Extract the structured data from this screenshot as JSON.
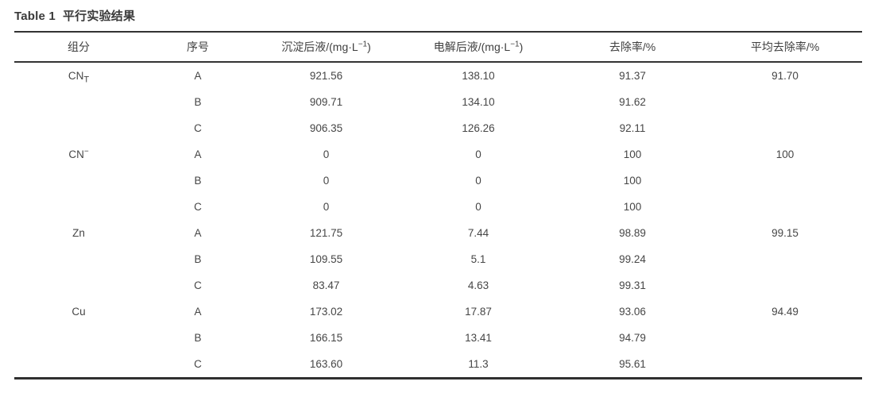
{
  "title": {
    "en": "Table 1",
    "zh": "平行实验结果"
  },
  "table": {
    "columns": [
      {
        "name": "component",
        "pre": "组分",
        "sup": "",
        "post": ""
      },
      {
        "name": "serial",
        "pre": "序号",
        "sup": "",
        "post": ""
      },
      {
        "name": "precipitation",
        "pre": "沉淀后液/(mg·L",
        "sup": "−1",
        "post": ")"
      },
      {
        "name": "electrolysis",
        "pre": "电解后液/(mg·L",
        "sup": "−1",
        "post": ")"
      },
      {
        "name": "removal",
        "pre": "去除率/%",
        "sup": "",
        "post": ""
      },
      {
        "name": "avg_removal",
        "pre": "平均去除率/%",
        "sup": "",
        "post": ""
      }
    ],
    "rows": [
      {
        "component": "CN",
        "component_sub": "T",
        "component_sup": "",
        "serial": "A",
        "precipitation": "921.56",
        "electrolysis": "138.10",
        "removal": "91.37",
        "avg_removal": "91.70"
      },
      {
        "component": "",
        "component_sub": "",
        "component_sup": "",
        "serial": "B",
        "precipitation": "909.71",
        "electrolysis": "134.10",
        "removal": "91.62",
        "avg_removal": ""
      },
      {
        "component": "",
        "component_sub": "",
        "component_sup": "",
        "serial": "C",
        "precipitation": "906.35",
        "electrolysis": "126.26",
        "removal": "92.11",
        "avg_removal": ""
      },
      {
        "component": "CN",
        "component_sub": "",
        "component_sup": "−",
        "serial": "A",
        "precipitation": "0",
        "electrolysis": "0",
        "removal": "100",
        "avg_removal": "100"
      },
      {
        "component": "",
        "component_sub": "",
        "component_sup": "",
        "serial": "B",
        "precipitation": "0",
        "electrolysis": "0",
        "removal": "100",
        "avg_removal": ""
      },
      {
        "component": "",
        "component_sub": "",
        "component_sup": "",
        "serial": "C",
        "precipitation": "0",
        "electrolysis": "0",
        "removal": "100",
        "avg_removal": ""
      },
      {
        "component": "Zn",
        "component_sub": "",
        "component_sup": "",
        "serial": "A",
        "precipitation": "121.75",
        "electrolysis": "7.44",
        "removal": "98.89",
        "avg_removal": "99.15"
      },
      {
        "component": "",
        "component_sub": "",
        "component_sup": "",
        "serial": "B",
        "precipitation": "109.55",
        "electrolysis": "5.1",
        "removal": "99.24",
        "avg_removal": ""
      },
      {
        "component": "",
        "component_sub": "",
        "component_sup": "",
        "serial": "C",
        "precipitation": "83.47",
        "electrolysis": "4.63",
        "removal": "99.31",
        "avg_removal": ""
      },
      {
        "component": "Cu",
        "component_sub": "",
        "component_sup": "",
        "serial": "A",
        "precipitation": "173.02",
        "electrolysis": "17.87",
        "removal": "93.06",
        "avg_removal": "94.49"
      },
      {
        "component": "",
        "component_sub": "",
        "component_sup": "",
        "serial": "B",
        "precipitation": "166.15",
        "electrolysis": "13.41",
        "removal": "94.79",
        "avg_removal": ""
      },
      {
        "component": "",
        "component_sub": "",
        "component_sup": "",
        "serial": "C",
        "precipitation": "163.60",
        "electrolysis": "11.3",
        "removal": "95.61",
        "avg_removal": ""
      }
    ]
  }
}
